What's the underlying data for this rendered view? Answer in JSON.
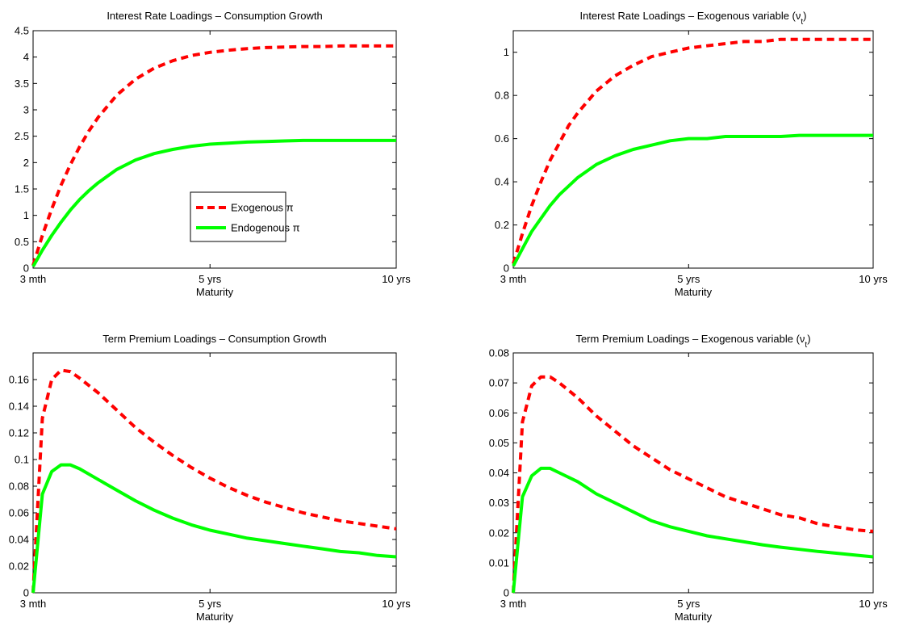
{
  "colors": {
    "exogenous": "#ff0000",
    "endogenous": "#00ff00",
    "axis": "#000000",
    "background": "#ffffff"
  },
  "legend": {
    "placement": "inside lower-right of top-left panel",
    "entries": [
      {
        "label": "Exogenous π",
        "style": "dashed",
        "color": "#ff0000"
      },
      {
        "label": "Endogenous π",
        "style": "solid",
        "color": "#00ff00"
      }
    ]
  },
  "chart_data": [
    {
      "type": "line",
      "title": "Interest Rate Loadings – Consumption Growth",
      "xlabel": "Maturity",
      "ylabel": "",
      "x_ticks": [
        {
          "value": 1,
          "label": "3 mth"
        },
        {
          "value": 20,
          "label": "5 yrs"
        },
        {
          "value": 40,
          "label": "10 yrs"
        }
      ],
      "xlim": [
        1,
        40
      ],
      "ylim": [
        0,
        4.5
      ],
      "y_ticks": [
        "0",
        "0.5",
        "1",
        "1.5",
        "2",
        "2.5",
        "3",
        "3.5",
        "4",
        "4.5"
      ],
      "grid": false,
      "legend": true,
      "series": [
        {
          "name": "Exogenous π",
          "x": [
            1,
            2,
            3,
            4,
            5,
            6,
            7,
            8,
            10,
            12,
            14,
            16,
            18,
            20,
            22,
            24,
            26,
            28,
            30,
            32,
            34,
            36,
            38,
            40
          ],
          "values": [
            0.05,
            0.62,
            1.12,
            1.57,
            1.96,
            2.3,
            2.6,
            2.86,
            3.28,
            3.58,
            3.79,
            3.93,
            4.03,
            4.09,
            4.13,
            4.16,
            4.18,
            4.19,
            4.2,
            4.2,
            4.21,
            4.21,
            4.21,
            4.21
          ]
        },
        {
          "name": "Endogenous π",
          "x": [
            1,
            2,
            3,
            4,
            5,
            6,
            7,
            8,
            10,
            12,
            14,
            16,
            18,
            20,
            22,
            24,
            26,
            28,
            30,
            32,
            34,
            36,
            38,
            40
          ],
          "values": [
            0.03,
            0.34,
            0.62,
            0.87,
            1.1,
            1.3,
            1.47,
            1.62,
            1.87,
            2.05,
            2.17,
            2.25,
            2.31,
            2.35,
            2.37,
            2.39,
            2.4,
            2.41,
            2.42,
            2.42,
            2.42,
            2.42,
            2.42,
            2.42
          ]
        }
      ]
    },
    {
      "type": "line",
      "title": "Interest Rate Loadings – Exogenous variable (ν",
      "title_subscript": "t",
      "title_suffix": ")",
      "xlabel": "Maturity",
      "ylabel": "",
      "x_ticks": [
        {
          "value": 1,
          "label": "3 mth"
        },
        {
          "value": 20,
          "label": "5 yrs"
        },
        {
          "value": 40,
          "label": "10 yrs"
        }
      ],
      "xlim": [
        1,
        40
      ],
      "ylim": [
        0,
        1.1
      ],
      "y_ticks": [
        "0",
        "0.2",
        "0.4",
        "0.6",
        "0.8",
        "1"
      ],
      "grid": false,
      "legend": false,
      "series": [
        {
          "name": "Exogenous π",
          "x": [
            1,
            2,
            3,
            4,
            5,
            6,
            7,
            8,
            10,
            12,
            14,
            16,
            18,
            20,
            22,
            24,
            26,
            28,
            30,
            32,
            34,
            36,
            38,
            40
          ],
          "values": [
            0.02,
            0.16,
            0.29,
            0.4,
            0.5,
            0.58,
            0.66,
            0.72,
            0.82,
            0.89,
            0.94,
            0.98,
            1.0,
            1.02,
            1.03,
            1.04,
            1.05,
            1.05,
            1.06,
            1.06,
            1.06,
            1.06,
            1.06,
            1.06
          ]
        },
        {
          "name": "Endogenous π",
          "x": [
            1,
            2,
            3,
            4,
            5,
            6,
            7,
            8,
            10,
            12,
            14,
            16,
            18,
            20,
            22,
            24,
            26,
            28,
            30,
            32,
            34,
            36,
            38,
            40
          ],
          "values": [
            0.01,
            0.09,
            0.17,
            0.23,
            0.29,
            0.34,
            0.38,
            0.42,
            0.48,
            0.52,
            0.55,
            0.57,
            0.59,
            0.6,
            0.6,
            0.61,
            0.61,
            0.61,
            0.61,
            0.615,
            0.615,
            0.615,
            0.615,
            0.615
          ]
        }
      ]
    },
    {
      "type": "line",
      "title": "Term  Premium Loadings – Consumption Growth",
      "xlabel": "Maturity",
      "ylabel": "",
      "x_ticks": [
        {
          "value": 1,
          "label": "3 mth"
        },
        {
          "value": 20,
          "label": "5 yrs"
        },
        {
          "value": 40,
          "label": "10 yrs"
        }
      ],
      "xlim": [
        1,
        40
      ],
      "ylim": [
        0,
        0.18
      ],
      "y_ticks": [
        "0",
        "0.02",
        "0.04",
        "0.06",
        "0.08",
        "0.1",
        "0.12",
        "0.14",
        "0.16"
      ],
      "grid": false,
      "legend": false,
      "series": [
        {
          "name": "Exogenous π",
          "x": [
            1,
            2,
            3,
            4,
            5,
            6,
            8,
            10,
            12,
            14,
            16,
            18,
            20,
            22,
            24,
            26,
            28,
            30,
            32,
            34,
            36,
            38,
            40
          ],
          "values": [
            0,
            0.131,
            0.16,
            0.167,
            0.166,
            0.161,
            0.15,
            0.137,
            0.124,
            0.113,
            0.103,
            0.094,
            0.086,
            0.079,
            0.073,
            0.068,
            0.064,
            0.06,
            0.057,
            0.054,
            0.052,
            0.05,
            0.048
          ]
        },
        {
          "name": "Endogenous π",
          "x": [
            1,
            2,
            3,
            4,
            5,
            6,
            8,
            10,
            12,
            14,
            16,
            18,
            20,
            22,
            24,
            26,
            28,
            30,
            32,
            34,
            36,
            38,
            40
          ],
          "values": [
            0,
            0.074,
            0.091,
            0.096,
            0.096,
            0.093,
            0.085,
            0.077,
            0.069,
            0.062,
            0.056,
            0.051,
            0.047,
            0.044,
            0.041,
            0.039,
            0.037,
            0.035,
            0.033,
            0.031,
            0.03,
            0.028,
            0.027
          ]
        }
      ]
    },
    {
      "type": "line",
      "title": "Term  Premium Loadings – Exogenous variable (ν",
      "title_subscript": "t",
      "title_suffix": ")",
      "xlabel": "Maturity",
      "ylabel": "",
      "x_ticks": [
        {
          "value": 1,
          "label": "3 mth"
        },
        {
          "value": 20,
          "label": "5 yrs"
        },
        {
          "value": 40,
          "label": "10 yrs"
        }
      ],
      "xlim": [
        1,
        40
      ],
      "ylim": [
        0,
        0.08
      ],
      "y_ticks": [
        "0",
        "0.01",
        "0.02",
        "0.03",
        "0.04",
        "0.05",
        "0.06",
        "0.07",
        "0.08"
      ],
      "grid": false,
      "legend": false,
      "series": [
        {
          "name": "Exogenous π",
          "x": [
            1,
            2,
            3,
            4,
            5,
            6,
            8,
            10,
            12,
            14,
            16,
            18,
            20,
            22,
            24,
            26,
            28,
            30,
            32,
            34,
            36,
            38,
            40
          ],
          "values": [
            0,
            0.057,
            0.069,
            0.072,
            0.072,
            0.07,
            0.065,
            0.059,
            0.054,
            0.049,
            0.045,
            0.041,
            0.038,
            0.035,
            0.032,
            0.03,
            0.028,
            0.026,
            0.025,
            0.023,
            0.022,
            0.021,
            0.0205
          ]
        },
        {
          "name": "Endogenous π",
          "x": [
            1,
            2,
            3,
            4,
            5,
            6,
            8,
            10,
            12,
            14,
            16,
            18,
            20,
            22,
            24,
            26,
            28,
            30,
            32,
            34,
            36,
            38,
            40
          ],
          "values": [
            0,
            0.032,
            0.039,
            0.0415,
            0.0415,
            0.04,
            0.037,
            0.033,
            0.03,
            0.027,
            0.024,
            0.022,
            0.0205,
            0.019,
            0.018,
            0.017,
            0.016,
            0.0152,
            0.0145,
            0.0138,
            0.0132,
            0.0126,
            0.012
          ]
        }
      ]
    }
  ]
}
